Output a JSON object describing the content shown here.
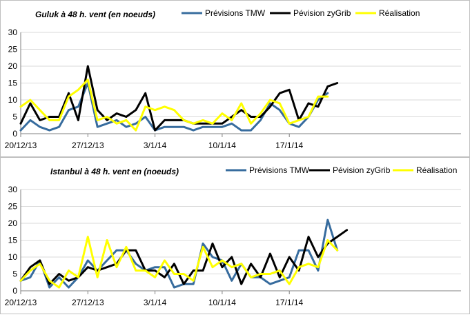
{
  "colors": {
    "tmw": "#376c9e",
    "zygrib": "#000000",
    "realisation": "#ffff00",
    "grid": "#d9d9d9",
    "axis": "#808080"
  },
  "chart_data": [
    {
      "type": "line",
      "title": "Guluk à 48 h. vent (en noeuds)",
      "ylim": [
        0,
        30
      ],
      "yticks": [
        "0",
        "5",
        "10",
        "15",
        "20",
        "25",
        "30"
      ],
      "xticks": [
        {
          "label": "20/12/13",
          "index": 0
        },
        {
          "label": "27/12/13",
          "index": 7
        },
        {
          "label": "3/1/14",
          "index": 14
        },
        {
          "label": "10/1/14",
          "index": 21
        },
        {
          "label": "17/1/14",
          "index": 28
        }
      ],
      "legend_position": "top",
      "series": [
        {
          "name": "Prévisions TMW",
          "key": "tmw",
          "values": [
            1,
            4,
            2,
            1,
            2,
            7,
            8,
            15,
            2,
            3,
            4,
            2,
            3,
            5,
            1,
            2,
            2,
            2,
            1,
            2,
            2,
            2,
            3,
            1,
            1,
            4,
            9,
            7,
            3,
            2,
            5,
            10,
            12
          ]
        },
        {
          "name": "Pévision zyGrib",
          "key": "zygrib",
          "values": [
            3,
            9,
            4,
            5,
            5,
            12,
            4,
            20,
            7,
            4,
            6,
            5,
            7,
            12,
            1,
            4,
            4,
            4,
            3,
            3,
            3,
            3,
            5,
            7,
            5,
            5,
            8,
            12,
            13,
            4,
            9,
            8,
            14,
            15
          ]
        },
        {
          "name": "Réalisation",
          "key": "realisation",
          "values": [
            8,
            10,
            7,
            4,
            4,
            11,
            13,
            16,
            4,
            5,
            3,
            4,
            1,
            8,
            7,
            8,
            7,
            4,
            3,
            4,
            3,
            6,
            4,
            9,
            3,
            6,
            10,
            9,
            3,
            4,
            5,
            11,
            11
          ]
        }
      ]
    },
    {
      "type": "line",
      "title": "Istanbul à 48 h. vent en (noeuds)",
      "ylim": [
        0,
        30
      ],
      "yticks": [
        "0",
        "5",
        "10",
        "15",
        "20",
        "25",
        "30"
      ],
      "xticks": [
        {
          "label": "20/12/13",
          "index": 0
        },
        {
          "label": "27/12/13",
          "index": 7
        },
        {
          "label": "3/1/14",
          "index": 14
        },
        {
          "label": "10/1/14",
          "index": 21
        },
        {
          "label": "17/1/14",
          "index": 28
        }
      ],
      "legend_position": "top",
      "series": [
        {
          "name": "Prévisions TMW",
          "key": "tmw",
          "values": [
            3,
            4,
            9,
            1,
            4,
            1,
            4,
            9,
            6,
            9,
            12,
            12,
            8,
            6,
            7,
            7,
            1,
            2,
            2,
            14,
            10,
            9,
            3,
            8,
            4,
            4,
            2,
            3,
            4,
            12,
            12,
            6,
            21,
            12
          ]
        },
        {
          "name": "Pévision zyGrib",
          "key": "zygrib",
          "values": [
            3,
            7,
            9,
            2,
            5,
            3,
            4,
            7,
            6,
            7,
            8,
            12,
            12,
            6,
            6,
            4,
            8,
            2,
            6,
            6,
            14,
            7,
            10,
            2,
            8,
            4,
            11,
            4,
            10,
            6,
            16,
            10,
            14,
            16,
            18
          ]
        },
        {
          "name": "Réalisation",
          "key": "realisation",
          "values": [
            3,
            6,
            8,
            3,
            1,
            6,
            4,
            16,
            4,
            15,
            7,
            13,
            6,
            6,
            4,
            9,
            5,
            5,
            3,
            13,
            7,
            9,
            7,
            8,
            4,
            5,
            5,
            6,
            2,
            7,
            8,
            7,
            15,
            12
          ]
        }
      ]
    }
  ]
}
